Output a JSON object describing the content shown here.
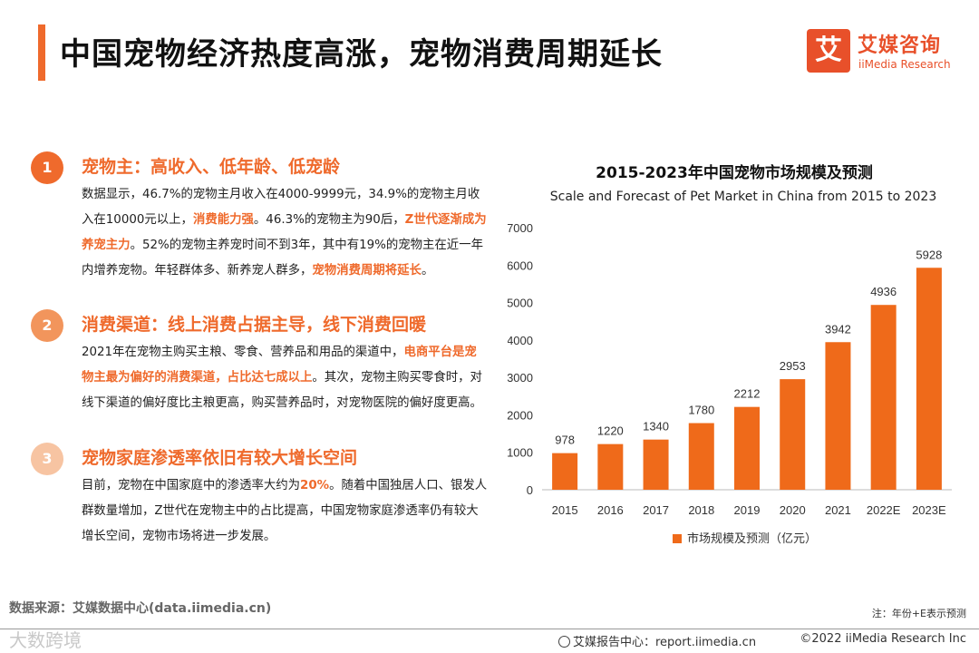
{
  "header": {
    "title": "中国宠物经济热度高涨，宠物消费周期延长",
    "logo_mark": "艾",
    "logo_cn": "艾媒咨询",
    "logo_en": "iiMedia Research"
  },
  "points": [
    {
      "num": "1",
      "color": "#ef6a2c",
      "heading": "宠物主：高收入、低年龄、低宠龄",
      "body": [
        {
          "text": "数据显示，46.7%的宠物主月收入在4000-9999元，34.9%的宠物主月收入在10000元以上，"
        },
        {
          "text": "消费能力强",
          "hl": true
        },
        {
          "text": "。46.3%的宠物主为90后，"
        },
        {
          "text": "Z世代逐渐成为养宠主力",
          "hl": true
        },
        {
          "text": "。52%的宠物主养宠时间不到3年，其中有19%的宠物主在近一年内增养宠物。年轻群体多、新养宠人群多，"
        },
        {
          "text": "宠物消费周期将延长",
          "hl": true
        },
        {
          "text": "。"
        }
      ]
    },
    {
      "num": "2",
      "color": "#f2955c",
      "heading": "消费渠道：线上消费占据主导，线下消费回暖",
      "body": [
        {
          "text": "2021年在宠物主购买主粮、零食、营养品和用品的渠道中，"
        },
        {
          "text": "电商平台是宠物主最为偏好的消费渠道，占比达七成以上",
          "hl": true
        },
        {
          "text": "。其次，宠物主购买零食时，对线下渠道的偏好度比主粮更高，购买营养品时，对宠物医院的偏好度更高。"
        }
      ]
    },
    {
      "num": "3",
      "color": "#f7c4a2",
      "heading": "宠物家庭渗透率依旧有较大增长空间",
      "body": [
        {
          "text": "目前，宠物在中国家庭中的渗透率大约为"
        },
        {
          "text": "20%",
          "hl": true
        },
        {
          "text": "。随着中国独居人口、银发人群数量增加，Z世代在宠物主中的占比提高，中国宠物家庭渗透率仍有较大增长空间，宠物市场将进一步发展。"
        }
      ]
    }
  ],
  "chart_data": {
    "type": "bar",
    "title": "2015-2023年中国宠物市场规模及预测",
    "subtitle": "Scale and Forecast of Pet Market in China from 2015 to 2023",
    "categories": [
      "2015",
      "2016",
      "2017",
      "2018",
      "2019",
      "2020",
      "2021",
      "2022E",
      "2023E"
    ],
    "series": [
      {
        "name": "市场规模及预测（亿元）",
        "values": [
          978,
          1220,
          1340,
          1780,
          2212,
          2953,
          3942,
          4936,
          5928
        ],
        "color": "#ef6a1a"
      }
    ],
    "ylim": [
      0,
      7000
    ],
    "yticks": [
      0,
      1000,
      2000,
      3000,
      4000,
      5000,
      6000,
      7000
    ],
    "grid": false,
    "legend": "bottom-center"
  },
  "footer": {
    "source": "数据来源：艾媒数据中心(data.iimedia.cn)",
    "note": "注：年份+E表示预测",
    "watermark": "大数跨境",
    "report": "艾媒报告中心：report.iimedia.cn",
    "copyright": "©2022  iiMedia Research  Inc"
  }
}
